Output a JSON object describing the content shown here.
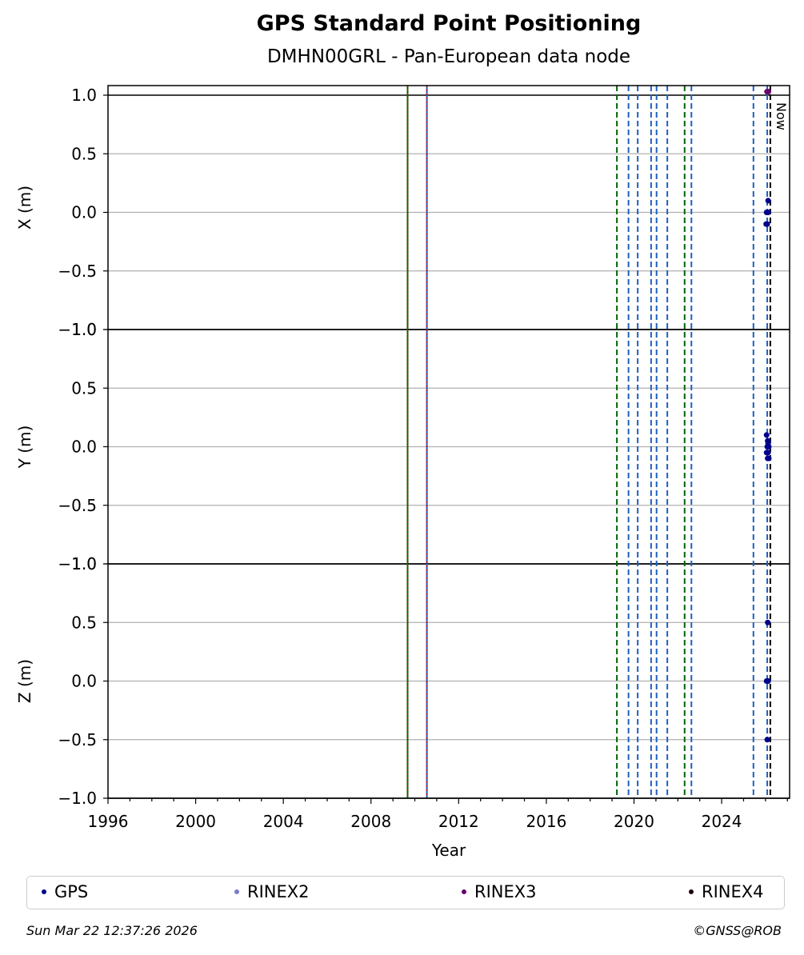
{
  "chart_data": {
    "type": "scatter",
    "title": "GPS Standard Point Positioning",
    "subtitle": "DMHN00GRL - Pan-European data node",
    "xlabel": "Year",
    "xlim": [
      1996.0,
      2027.1
    ],
    "x_ticks": [
      1996,
      2000,
      2004,
      2008,
      2012,
      2016,
      2020,
      2024
    ],
    "grid": "horizontal",
    "now_label": "Now",
    "now_year": 2026.22,
    "panels": [
      {
        "key": "X",
        "ylabel": "X (m)",
        "ylim": [
          -1.0,
          1.0
        ],
        "tick_labels": [
          "1.0",
          "0.5",
          "0.0",
          "−0.5",
          "−1.0"
        ]
      },
      {
        "key": "Y",
        "ylabel": "Y (m)",
        "ylim": [
          -1.0,
          1.0
        ],
        "tick_labels": [
          "1.0",
          "0.5",
          "0.0",
          "−0.5",
          "−1.0"
        ]
      },
      {
        "key": "Z",
        "ylabel": "Z (m)",
        "ylim": [
          -1.0,
          1.0
        ],
        "tick_labels": [
          "1.0",
          "0.5",
          "0.0",
          "−0.5",
          "−1.0"
        ]
      }
    ],
    "event_lines": [
      {
        "x": 2009.67,
        "color": "#006400",
        "style": "solid"
      },
      {
        "x": 2009.67,
        "color": "#e00000",
        "style": "dotted"
      },
      {
        "x": 2010.55,
        "color": "#1f5fbf",
        "style": "solid"
      },
      {
        "x": 2010.55,
        "color": "#e00000",
        "style": "dotted"
      },
      {
        "x": 2019.22,
        "color": "#006400",
        "style": "dashed"
      },
      {
        "x": 2019.75,
        "color": "#1f5fbf",
        "style": "dashed"
      },
      {
        "x": 2020.17,
        "color": "#1f5fbf",
        "style": "dashed"
      },
      {
        "x": 2020.78,
        "color": "#1f5fbf",
        "style": "dashed"
      },
      {
        "x": 2021.03,
        "color": "#1f5fbf",
        "style": "dashed"
      },
      {
        "x": 2021.52,
        "color": "#1f5fbf",
        "style": "dashed"
      },
      {
        "x": 2022.31,
        "color": "#006400",
        "style": "dashed"
      },
      {
        "x": 2022.62,
        "color": "#1f5fbf",
        "style": "dashed"
      },
      {
        "x": 2025.45,
        "color": "#1f5fbf",
        "style": "dashed"
      },
      {
        "x": 2026.08,
        "color": "#1f5fbf",
        "style": "dashed"
      },
      {
        "x": 2026.22,
        "color": "#000000",
        "style": "dashed"
      }
    ],
    "series": [
      {
        "name": "GPS",
        "color": "#00008b",
        "points": {
          "X": [
            [
              2026.05,
              0.0
            ],
            [
              2026.1,
              0.0
            ],
            [
              2026.12,
              0.1
            ],
            [
              2026.08,
              -0.1
            ],
            [
              2026.03,
              -0.1
            ],
            [
              2026.12,
              0.0
            ]
          ],
          "Y": [
            [
              2026.05,
              0.1
            ],
            [
              2026.1,
              0.05
            ],
            [
              2026.15,
              0.0
            ],
            [
              2026.08,
              0.0
            ],
            [
              2026.05,
              -0.05
            ],
            [
              2026.12,
              -0.05
            ],
            [
              2026.1,
              -0.1
            ],
            [
              2026.15,
              -0.1
            ],
            [
              2026.12,
              0.03
            ]
          ],
          "Z": [
            [
              2026.1,
              0.5
            ],
            [
              2026.05,
              0.0
            ],
            [
              2026.12,
              0.0
            ],
            [
              2026.08,
              -0.5
            ]
          ]
        }
      },
      {
        "name": "RINEX2",
        "color": "#7b7bc8",
        "points": {
          "X": [],
          "Y": [],
          "Z": []
        }
      },
      {
        "name": "RINEX3",
        "color": "#6a006a",
        "points": {
          "X": [
            [
              2026.07,
              1.03
            ],
            [
              2026.13,
              1.03
            ]
          ],
          "Y": [],
          "Z": []
        }
      },
      {
        "name": "RINEX4",
        "color": "#200010",
        "points": {
          "X": [],
          "Y": [],
          "Z": []
        }
      }
    ]
  },
  "legend": {
    "items": [
      {
        "label": "GPS",
        "color": "#00008b"
      },
      {
        "label": "RINEX2",
        "color": "#7b7bc8"
      },
      {
        "label": "RINEX3",
        "color": "#6a006a"
      },
      {
        "label": "RINEX4",
        "color": "#200010"
      }
    ]
  },
  "footer": {
    "timestamp": "Sun Mar 22 12:37:26 2026",
    "credit": "©GNSS@ROB"
  }
}
